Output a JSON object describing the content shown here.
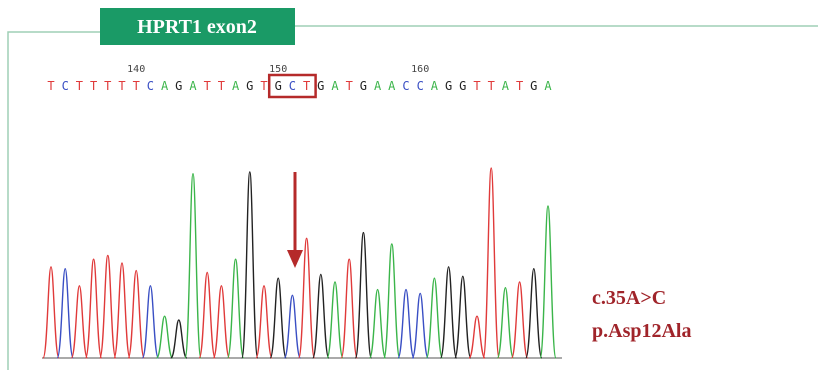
{
  "title": "HPRT1 exon2",
  "sequence": [
    "T",
    "C",
    "T",
    "T",
    "T",
    "T",
    "T",
    "C",
    "A",
    "G",
    "A",
    "T",
    "T",
    "A",
    "G",
    "T",
    "G",
    "C",
    "T",
    "G",
    "A",
    "T",
    "G",
    "A",
    "A",
    "C",
    "C",
    "A",
    "G",
    "G",
    "T",
    "T",
    "A",
    "T",
    "G",
    "A"
  ],
  "positions": [
    {
      "index": 6,
      "label": "140"
    },
    {
      "index": 16,
      "label": "150"
    },
    {
      "index": 26,
      "label": "160"
    }
  ],
  "highlight": {
    "start": 16,
    "end": 18,
    "color": "#b52a2a"
  },
  "base_colors": {
    "A": "#3bb54a",
    "C": "#3a4fc4",
    "G": "#222222",
    "T": "#e03a3a"
  },
  "peaks": [
    48,
    47,
    38,
    52,
    54,
    50,
    46,
    38,
    22,
    20,
    97,
    45,
    38,
    52,
    98,
    38,
    42,
    33,
    63,
    44,
    40,
    52,
    66,
    36,
    60,
    36,
    34,
    42,
    48,
    43,
    22,
    100,
    37,
    40,
    47,
    80
  ],
  "annotations": [
    "c.35A>C",
    "p.Asp12Ala"
  ]
}
